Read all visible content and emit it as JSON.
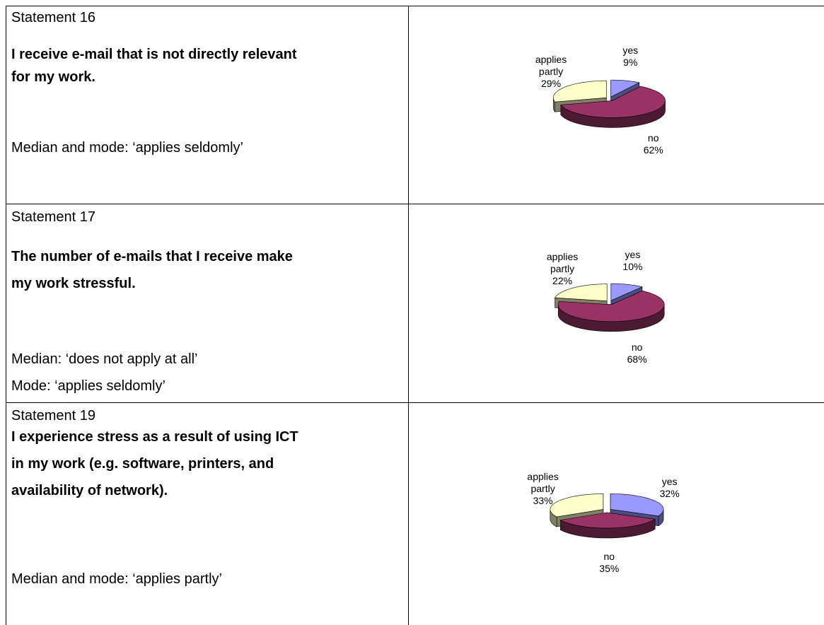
{
  "rows": [
    {
      "statement": "Statement 16",
      "text": [
        "I receive e-mail that is not directly relevant",
        "for my work."
      ],
      "notes": [
        "Median and mode: ‘applies seldomly’"
      ],
      "chart": {
        "type": "pie",
        "categories": [
          "yes",
          "no",
          "applies partly"
        ],
        "values": [
          9,
          62,
          29
        ],
        "value_labels": [
          "9%",
          "62%",
          "29%"
        ],
        "colors": [
          "#9999ff",
          "#993366",
          "#ffffcc"
        ]
      }
    },
    {
      "statement": "Statement 17",
      "text": [
        "The number of e-mails that I receive make",
        "my work stressful."
      ],
      "notes": [
        "Median: ‘does not apply at all’",
        "Mode: ‘applies seldomly’"
      ],
      "chart": {
        "type": "pie",
        "categories": [
          "yes",
          "no",
          "applies partly"
        ],
        "values": [
          10,
          68,
          22
        ],
        "value_labels": [
          "10%",
          "68%",
          "22%"
        ],
        "colors": [
          "#9999ff",
          "#993366",
          "#ffffcc"
        ]
      }
    },
    {
      "statement": "Statement 19",
      "text": [
        "I experience stress as a result of using ICT",
        "in my work (e.g. software, printers, and",
        "availability of network)."
      ],
      "notes": [
        "Median and mode: ‘applies partly’"
      ],
      "chart": {
        "type": "pie",
        "categories": [
          "yes",
          "no",
          "applies partly"
        ],
        "values": [
          32,
          35,
          33
        ],
        "value_labels": [
          "32%",
          "35%",
          "33%"
        ],
        "colors": [
          "#9999ff",
          "#993366",
          "#ffffcc"
        ]
      }
    }
  ]
}
